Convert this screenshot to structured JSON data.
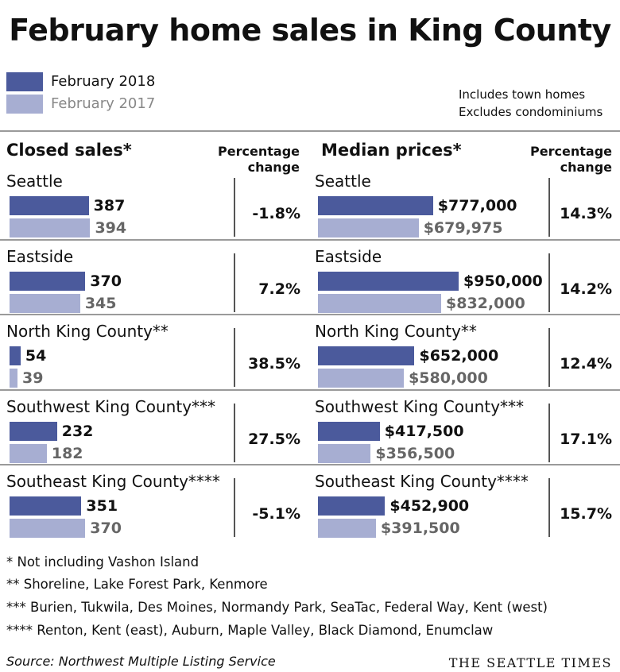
{
  "title": "February home sales in King County",
  "legend": [
    {
      "label": "February 2018",
      "color": "#4b5a9c"
    },
    {
      "label": "February 2017",
      "color": "#a7aed2"
    }
  ],
  "notes": [
    "Includes town homes",
    "Excludes condominiums"
  ],
  "pct_header_line1": "Percentage",
  "pct_header_line2": "change",
  "chart_data": [
    {
      "type": "bar",
      "title": "Closed sales*",
      "categories": [
        "Seattle",
        "Eastside",
        "North King County**",
        "Southwest King County***",
        "Southeast King County****"
      ],
      "series": [
        {
          "name": "February 2018",
          "values": [
            387,
            370,
            54,
            232,
            351
          ],
          "labels": [
            "387",
            "370",
            "54",
            "232",
            "351"
          ]
        },
        {
          "name": "February 2017",
          "values": [
            394,
            345,
            39,
            182,
            370
          ],
          "labels": [
            "394",
            "345",
            "39",
            "182",
            "370"
          ]
        }
      ],
      "percentage_change": [
        "-1.8%",
        "7.2%",
        "38.5%",
        "27.5%",
        "-5.1%"
      ]
    },
    {
      "type": "bar",
      "title": "Median prices*",
      "categories": [
        "Seattle",
        "Eastside",
        "North King County**",
        "Southwest King County***",
        "Southeast King County****"
      ],
      "series": [
        {
          "name": "February 2018",
          "values": [
            777000,
            950000,
            652000,
            417500,
            452900
          ],
          "labels": [
            "$777,000",
            "$950,000",
            "$652,000",
            "$417,500",
            "$452,900"
          ]
        },
        {
          "name": "February 2017",
          "values": [
            679975,
            832000,
            580000,
            356500,
            391500
          ],
          "labels": [
            "$679,975",
            "$832,000",
            "$580,000",
            "$356,500",
            "$391,500"
          ]
        }
      ],
      "percentage_change": [
        "14.3%",
        "14.2%",
        "12.4%",
        "17.1%",
        "15.7%"
      ]
    }
  ],
  "footnotes": [
    "* Not including Vashon Island",
    "**  Shoreline, Lake Forest Park, Kenmore",
    "*** Burien, Tukwila, Des Moines, Normandy Park, SeaTac, Federal Way, Kent (west)",
    "**** Renton, Kent (east), Auburn, Maple Valley, Black Diamond, Enumclaw"
  ],
  "source": "Source: Northwest Multiple Listing Service",
  "brand": "THE SEATTLE TIMES"
}
